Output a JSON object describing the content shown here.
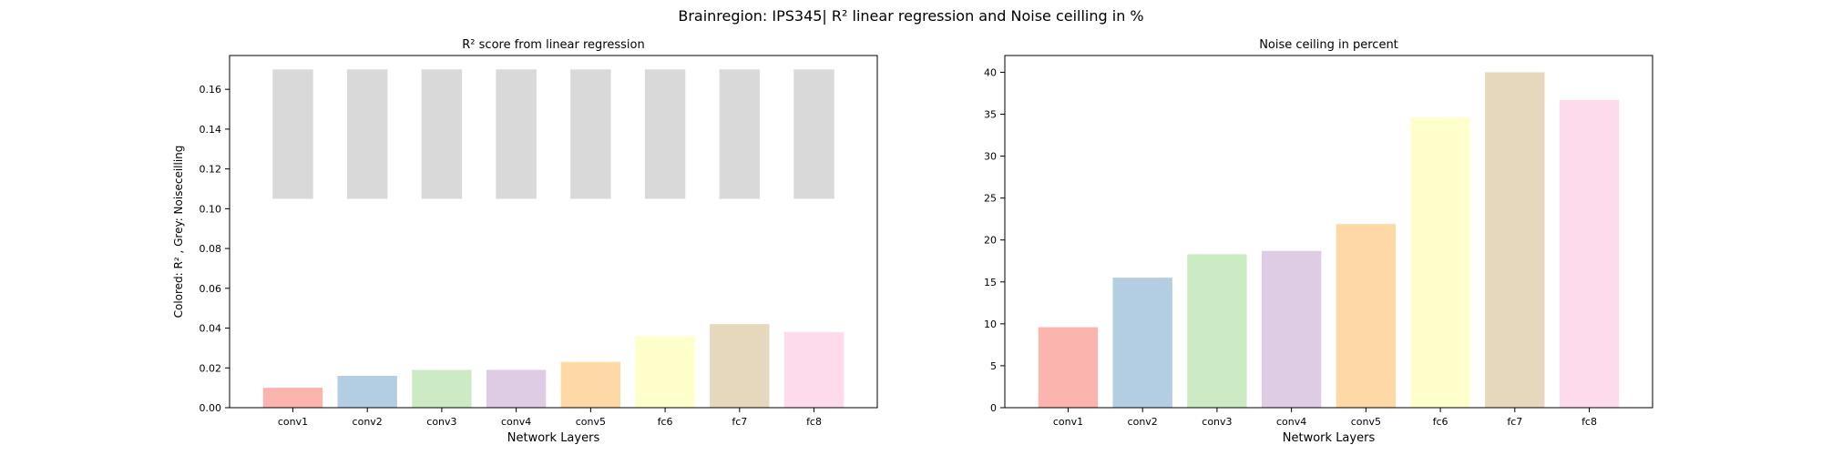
{
  "figure": {
    "suptitle": "Brainregion: IPS345| R² linear regression and Noise ceilling in %"
  },
  "chart_data": [
    {
      "type": "bar",
      "title": "R² score from linear regression",
      "xlabel": "Network Layers",
      "ylabel": "Colored: R² , Grey: Noiseceilling",
      "categories": [
        "conv1",
        "conv2",
        "conv3",
        "conv4",
        "conv5",
        "fc6",
        "fc7",
        "fc8"
      ],
      "ylim": [
        0,
        0.177
      ],
      "yticks": [
        0.0,
        0.02,
        0.04,
        0.06,
        0.08,
        0.1,
        0.12,
        0.14,
        0.16
      ],
      "ytick_labels": [
        "0.00",
        "0.02",
        "0.04",
        "0.06",
        "0.08",
        "0.10",
        "0.12",
        "0.14",
        "0.16"
      ],
      "series": [
        {
          "values": [
            0.01,
            0.016,
            0.019,
            0.019,
            0.023,
            0.036,
            0.042,
            0.038
          ]
        },
        {
          "values": [
            0.065,
            0.065,
            0.065,
            0.065,
            0.065,
            0.065,
            0.065,
            0.065
          ],
          "bottom": [
            0.105,
            0.105,
            0.105,
            0.105,
            0.105,
            0.105,
            0.105,
            0.105
          ]
        }
      ],
      "colors": [
        "#fbb4ae",
        "#b3cde3",
        "#ccebc5",
        "#decbe4",
        "#fed9a6",
        "#ffffcc",
        "#e5d8bd",
        "#fddaec"
      ],
      "grey_color": "#d9d9d9",
      "grid": false
    },
    {
      "type": "bar",
      "title": "Noise ceiling in percent",
      "xlabel": "Network Layers",
      "ylabel": "",
      "categories": [
        "conv1",
        "conv2",
        "conv3",
        "conv4",
        "conv5",
        "fc6",
        "fc7",
        "fc8"
      ],
      "ylim": [
        0,
        42
      ],
      "yticks": [
        0,
        5,
        10,
        15,
        20,
        25,
        30,
        35,
        40
      ],
      "ytick_labels": [
        "0",
        "5",
        "10",
        "15",
        "20",
        "25",
        "30",
        "35",
        "40"
      ],
      "series": [
        {
          "values": [
            9.6,
            15.5,
            18.3,
            18.7,
            21.9,
            34.6,
            40.0,
            36.7
          ]
        }
      ],
      "colors": [
        "#fbb4ae",
        "#b3cde3",
        "#ccebc5",
        "#decbe4",
        "#fed9a6",
        "#ffffcc",
        "#e5d8bd",
        "#fddaec"
      ],
      "grid": false
    }
  ]
}
